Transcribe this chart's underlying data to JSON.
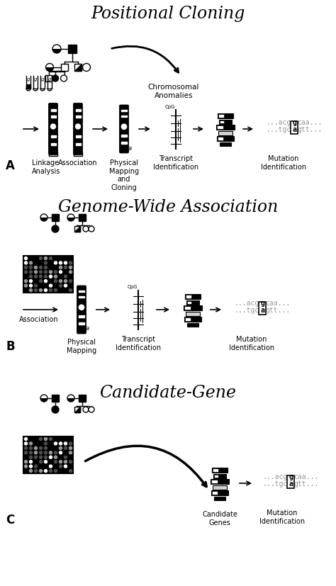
{
  "title_A": "Positional Cloning",
  "title_B": "Genome-Wide Association",
  "title_C": "Candidate-Gene",
  "label_A": "A",
  "label_B": "B",
  "label_C": "C",
  "section_A_labels": [
    "Linkage\nAnalysis",
    "Association",
    "Physical\nMapping\nand\nCloning",
    "Transcript\nIdentification",
    "Mutation\nIdentification"
  ],
  "section_B_labels": [
    "Association",
    "Physical\nMapping",
    "Transcript\nIdentification",
    "Mutation\nIdentification"
  ],
  "section_C_labels": [
    "Candidate\nGenes",
    "Mutation\nIdentification"
  ],
  "chromosomal_anomalies": "Chromosomal\nAnomalies",
  "bg_color": "#ffffff",
  "text_color": "#000000",
  "gray_color": "#999999"
}
